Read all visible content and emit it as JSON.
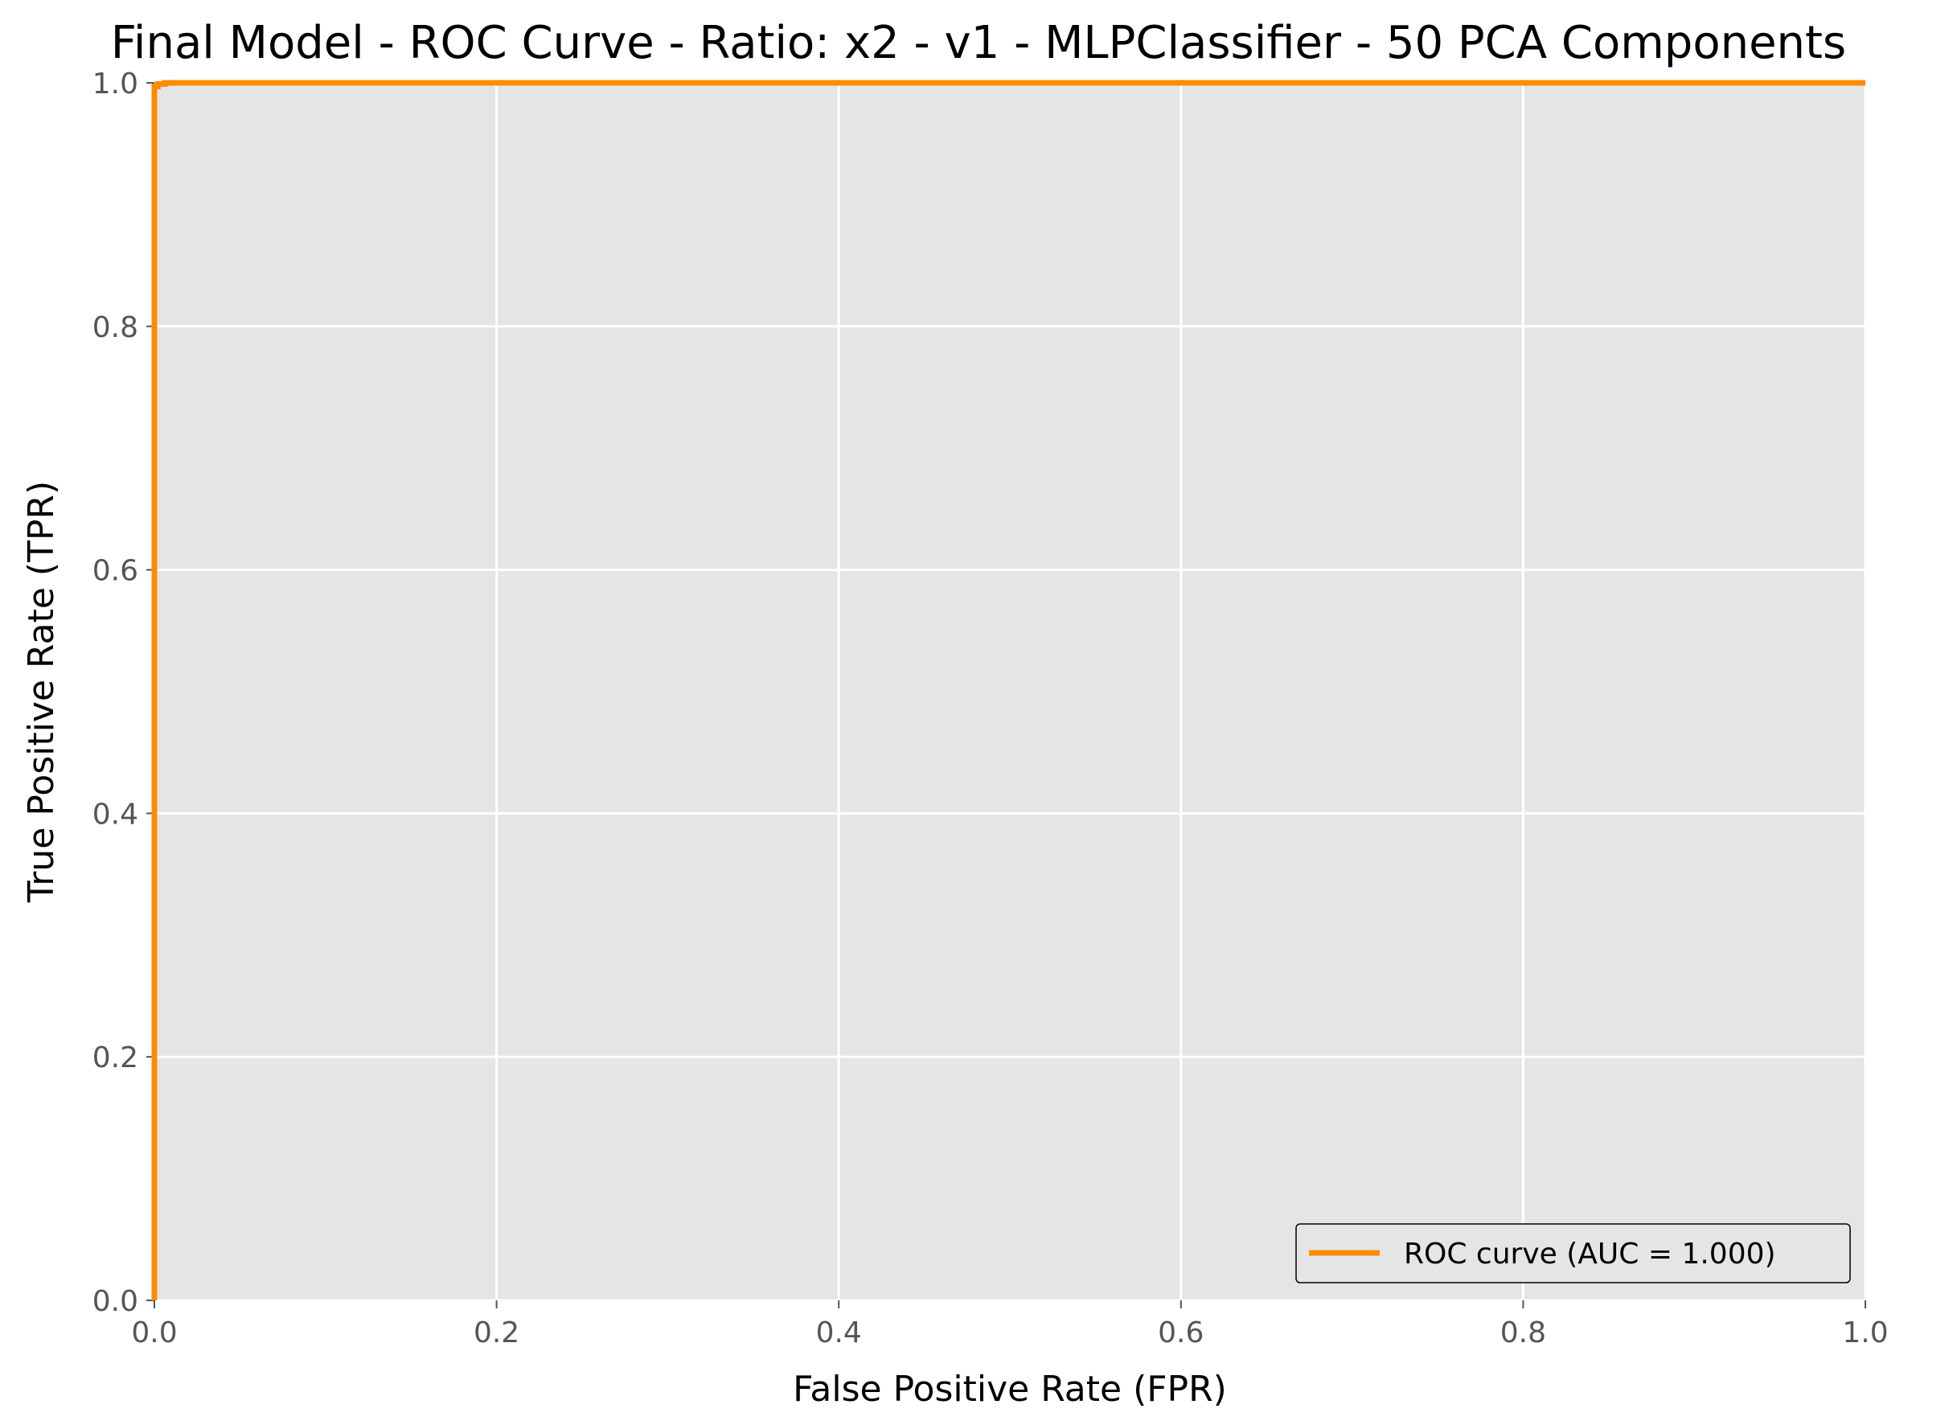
{
  "chart_data": {
    "type": "line",
    "title": "Final Model - ROC Curve - Ratio: x2 - v1 - MLPClassifier - 50 PCA Components",
    "xlabel": "False Positive Rate (FPR)",
    "ylabel": "True Positive Rate (TPR)",
    "xlim": [
      0.0,
      1.0
    ],
    "ylim": [
      0.0,
      1.0
    ],
    "xticks": [
      0.0,
      0.2,
      0.4,
      0.6,
      0.8,
      1.0
    ],
    "yticks": [
      0.0,
      0.2,
      0.4,
      0.6,
      0.8,
      1.0
    ],
    "xtick_labels": [
      "0.0",
      "0.2",
      "0.4",
      "0.6",
      "0.8",
      "1.0"
    ],
    "ytick_labels": [
      "0.0",
      "0.2",
      "0.4",
      "0.6",
      "0.8",
      "1.0"
    ],
    "grid": true,
    "legend_position": "lower-right",
    "colors": {
      "plot_background": "#e5e5e5",
      "grid": "#ffffff",
      "series": "#ff8c00"
    },
    "series": [
      {
        "name": "ROC curve (AUC = 1.000)",
        "x": [
          0.0,
          0.0,
          0.002,
          0.002,
          0.006,
          0.006,
          1.0
        ],
        "y": [
          0.0,
          0.997,
          0.997,
          0.999,
          0.999,
          1.0,
          1.0
        ]
      }
    ]
  }
}
